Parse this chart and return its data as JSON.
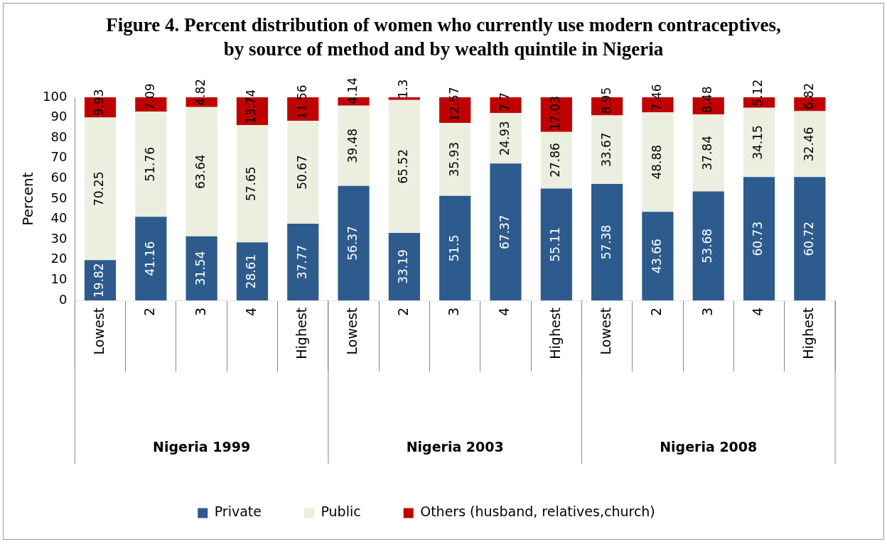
{
  "chart_data": {
    "type": "bar",
    "stacked": true,
    "title": "Figure 4. Percent distribution of women who currently use modern contraceptives, by source of method and by wealth quintile in Nigeria",
    "ylabel": "Percent",
    "categories": [
      "Lowest",
      "2",
      "3",
      "4",
      "Highest",
      "Lowest",
      "2",
      "3",
      "4",
      "Highest",
      "Lowest",
      "2",
      "3",
      "4",
      "Highest"
    ],
    "annotations": [
      "Nigeria 1999",
      "Nigeria 2003",
      "Nigeria 2008"
    ],
    "series": [
      {
        "name": "Private",
        "color": "#2e5b8e",
        "values": [
          19.82,
          41.16,
          31.54,
          28.61,
          37.77,
          56.37,
          33.19,
          51.5,
          67.37,
          55.11,
          57.38,
          43.66,
          53.68,
          60.73,
          60.72
        ]
      },
      {
        "name": "Public",
        "color": "#ecefe0",
        "values": [
          70.25,
          51.76,
          63.64,
          57.65,
          50.67,
          39.48,
          65.52,
          35.93,
          24.93,
          27.86,
          33.67,
          48.88,
          37.84,
          34.15,
          32.46
        ]
      },
      {
        "name": "Others (husband, relatives,church)",
        "color": "#c00000",
        "values": [
          9.93,
          7.09,
          4.82,
          13.74,
          11.56,
          4.14,
          1.3,
          12.57,
          7.7,
          17.03,
          8.95,
          7.46,
          8.48,
          5.12,
          6.82
        ]
      }
    ],
    "ylim": [
      0,
      100
    ],
    "yticks": [
      0,
      10,
      20,
      30,
      40,
      50,
      60,
      70,
      80,
      90,
      100
    ],
    "grid": false,
    "legend": "bottom",
    "data_labels": true
  }
}
